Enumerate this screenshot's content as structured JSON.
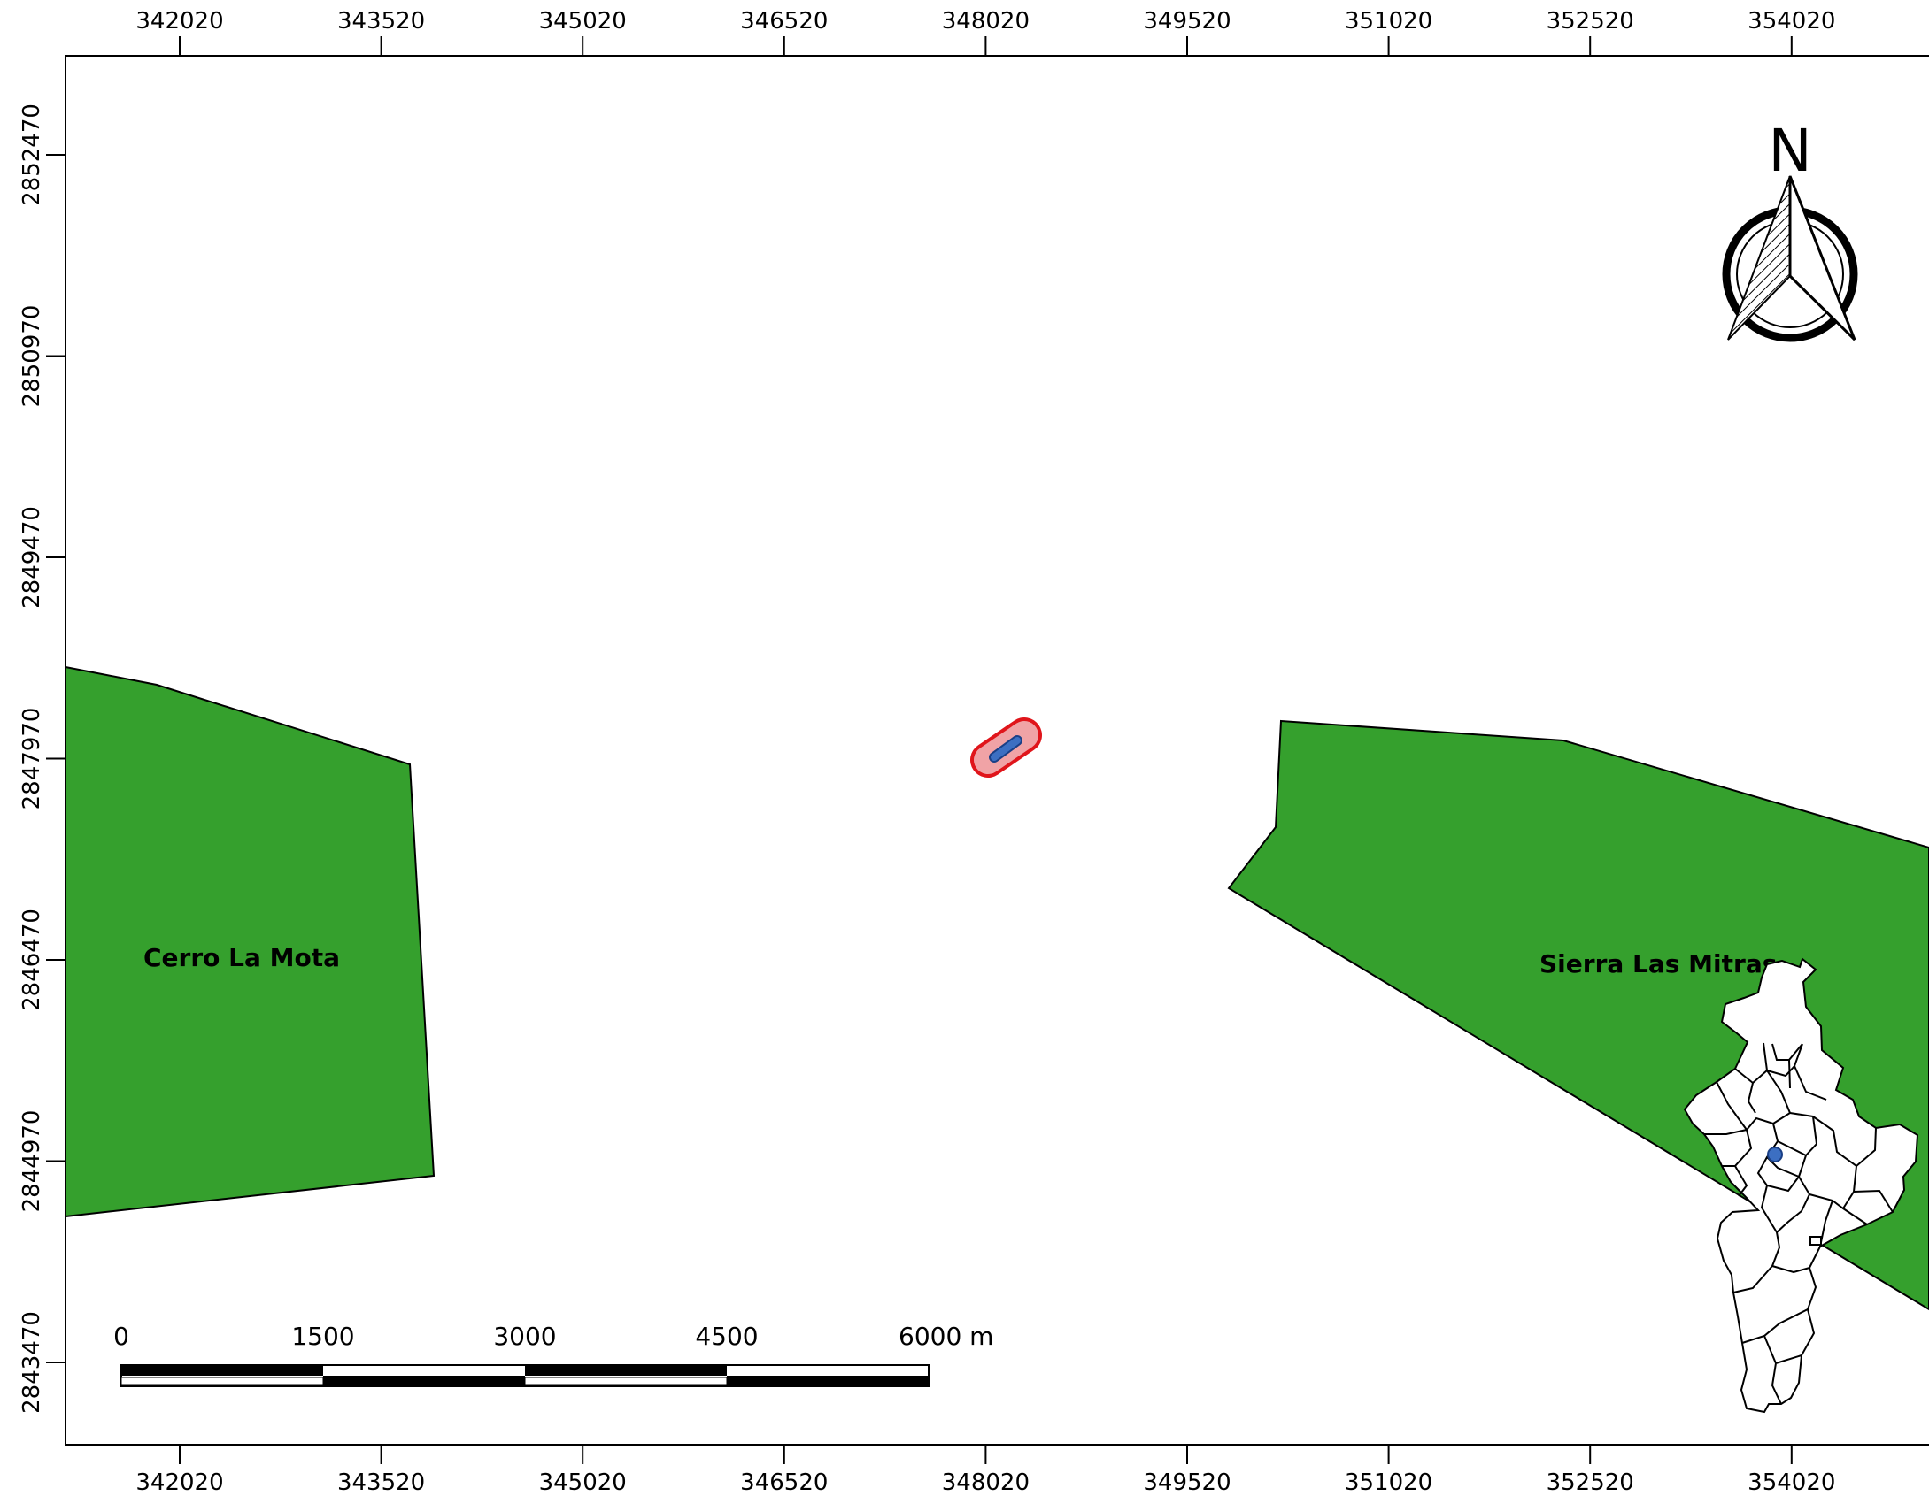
{
  "map": {
    "x_ticks": [
      "342020",
      "343520",
      "345020",
      "346520",
      "348020",
      "349520",
      "351020",
      "352520",
      "354020"
    ],
    "y_ticks": [
      "2852470",
      "2850970",
      "2849470",
      "2847970",
      "2846470",
      "2844970",
      "2843470"
    ],
    "areas": [
      {
        "name": "Cerro La Mota",
        "color": "#35a02d"
      },
      {
        "name": "Sierra Las Mitras",
        "color": "#35a02d"
      }
    ],
    "site": {
      "fill": "#f0a3a6",
      "outline": "#e0151b",
      "core": "#3c6fc2"
    },
    "north_arrow": {
      "letter": "N"
    },
    "scale_bar": {
      "labels": [
        "0",
        "1500",
        "3000",
        "4500",
        "6000 m"
      ]
    },
    "colors": {
      "frame": "#000000",
      "protected_area": "#35a02d",
      "inset_fill": "#ffffff",
      "inset_marker": "#3c6fc2"
    }
  }
}
